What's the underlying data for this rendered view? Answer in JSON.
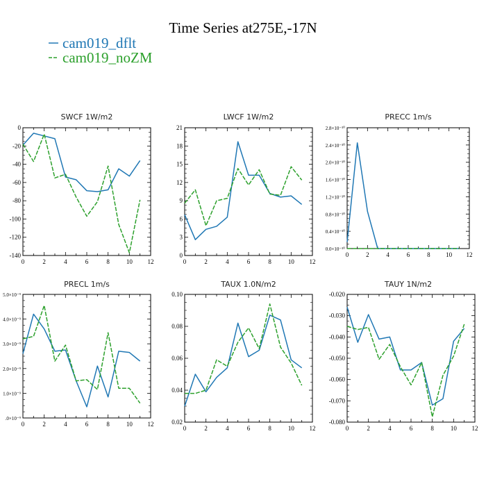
{
  "title": "Time Series at275E,-17N",
  "colors": {
    "dflt": "#1f77b4",
    "nozm": "#2ca02c",
    "axis": "#000000"
  },
  "legend": [
    {
      "label": "cam019_dflt",
      "color": "#1f77b4",
      "style": "solid"
    },
    {
      "label": "cam019_noZM",
      "color": "#2ca02c",
      "style": "dashed"
    }
  ],
  "chart_data": [
    {
      "type": "line",
      "title": "SWCF   1W/m2",
      "x": [
        0,
        1,
        2,
        3,
        4,
        5,
        6,
        7,
        8,
        9,
        10,
        11
      ],
      "xlim": [
        0,
        12
      ],
      "xticks": [
        0,
        2,
        4,
        6,
        8,
        10,
        12
      ],
      "xtick_labels": [
        "0",
        "2",
        "4",
        "6",
        "8",
        "10",
        "12"
      ],
      "ylim": [
        -140,
        0
      ],
      "yticks": [
        -140,
        -120,
        -100,
        -80,
        -60,
        -40,
        -20,
        0
      ],
      "ytick_labels": [
        "-140",
        "-120",
        "-100",
        "-80",
        "-60",
        "-40",
        "-20",
        "0"
      ],
      "series": [
        {
          "name": "cam019_dflt",
          "values": [
            -19,
            -6,
            -9,
            -12,
            -54,
            -57,
            -69,
            -70,
            -68,
            -45,
            -53,
            -36
          ]
        },
        {
          "name": "cam019_noZM",
          "values": [
            -18,
            -37,
            -7,
            -55,
            -51,
            -76,
            -97,
            -81,
            -42,
            -106,
            -137,
            -79
          ]
        }
      ]
    },
    {
      "type": "line",
      "title": "LWCF   1W/m2",
      "x": [
        0,
        1,
        2,
        3,
        4,
        5,
        6,
        7,
        8,
        9,
        10,
        11
      ],
      "xlim": [
        0,
        12
      ],
      "xticks": [
        0,
        2,
        4,
        6,
        8,
        10,
        12
      ],
      "xtick_labels": [
        "0",
        "2",
        "4",
        "6",
        "8",
        "10",
        "12"
      ],
      "ylim": [
        0,
        21
      ],
      "yticks": [
        0,
        3,
        6,
        9,
        12,
        15,
        18,
        21
      ],
      "ytick_labels": [
        "0",
        "3",
        "6",
        "9",
        "12",
        "15",
        "18",
        "21"
      ],
      "series": [
        {
          "name": "cam019_dflt",
          "values": [
            6.7,
            2.6,
            4.3,
            4.8,
            6.3,
            18.7,
            13.2,
            13.2,
            10.2,
            9.6,
            9.8,
            8.4
          ]
        },
        {
          "name": "cam019_noZM",
          "values": [
            8.6,
            10.8,
            4.9,
            9.0,
            9.4,
            14.3,
            11.6,
            14.1,
            10.1,
            9.9,
            14.6,
            12.4
          ]
        }
      ]
    },
    {
      "type": "line",
      "title": "PRECC   1m/s",
      "x": [
        0,
        1,
        2,
        3,
        4,
        5,
        6,
        7,
        8,
        9,
        10,
        11
      ],
      "xlim": [
        0,
        12
      ],
      "xticks": [
        0,
        2,
        4,
        6,
        8,
        10,
        12
      ],
      "xtick_labels": [
        "0",
        "2",
        "4",
        "6",
        "8",
        "10",
        "12"
      ],
      "ylim": [
        0,
        2.8e-10
      ],
      "yticks": [
        0,
        4e-11,
        8e-11,
        1.2e-10,
        1.6e-10,
        2e-10,
        2.4e-10,
        2.8e-10
      ],
      "ytick_labels": [
        "0.0×10⁻¹⁰",
        "0.4×10⁻¹⁰",
        "0.8×10⁻¹⁰",
        "1.2×10⁻¹⁰",
        "1.6×10⁻¹⁰",
        "2.0×10⁻¹⁰",
        "2.4×10⁻¹⁰",
        "2.8×10⁻¹⁰"
      ],
      "series": [
        {
          "name": "cam019_dflt",
          "values": [
            1.5e-11,
            2.45e-10,
            8.6e-11,
            0,
            0,
            0,
            0,
            0,
            0,
            0,
            0,
            0
          ]
        },
        {
          "name": "cam019_noZM",
          "values": [
            0,
            0,
            0,
            0,
            0,
            0,
            0,
            0,
            0,
            0,
            0,
            0
          ]
        }
      ]
    },
    {
      "type": "line",
      "title": "PRECL   1m/s",
      "x": [
        0,
        1,
        2,
        3,
        4,
        5,
        6,
        7,
        8,
        9,
        10,
        11
      ],
      "xlim": [
        0,
        12
      ],
      "xticks": [
        0,
        2,
        4,
        6,
        8,
        10,
        12
      ],
      "xtick_labels": [
        "0",
        "2",
        "4",
        "6",
        "8",
        "10",
        "12"
      ],
      "ylim": [
        0,
        5e-09
      ],
      "yticks": [
        0,
        1e-09,
        2e-09,
        3e-09,
        4e-09,
        5e-09
      ],
      "ytick_labels": [
        ".0×10⁻⁹",
        "1.0×10⁻⁹",
        "2.0×10⁻⁹",
        "3.0×10⁻⁹",
        "4.0×10⁻⁹",
        "5.0×10⁻⁹"
      ],
      "series": [
        {
          "name": "cam019_dflt",
          "values": [
            2.6e-09,
            4.2e-09,
            3.6e-09,
            2.7e-09,
            2.75e-09,
            1.5e-09,
            4.5e-10,
            2.1e-09,
            8.5e-10,
            2.7e-09,
            2.65e-09,
            2.3e-09
          ]
        },
        {
          "name": "cam019_noZM",
          "values": [
            3.2e-09,
            3.3e-09,
            4.55e-09,
            2.3e-09,
            2.95e-09,
            1.5e-09,
            1.55e-09,
            1.15e-09,
            3.45e-09,
            1.2e-09,
            1.2e-09,
            6e-10
          ]
        }
      ]
    },
    {
      "type": "line",
      "title": "TAUX   1.0N/m2",
      "x": [
        0,
        1,
        2,
        3,
        4,
        5,
        6,
        7,
        8,
        9,
        10,
        11
      ],
      "xlim": [
        0,
        12
      ],
      "xticks": [
        0,
        2,
        4,
        6,
        8,
        10,
        12
      ],
      "xtick_labels": [
        "0",
        "2",
        "4",
        "6",
        "8",
        "10",
        "12"
      ],
      "ylim": [
        0.02,
        0.1
      ],
      "yticks": [
        0.02,
        0.04,
        0.06,
        0.08,
        0.1
      ],
      "ytick_labels": [
        "0.02",
        "0.04",
        "0.06",
        "0.08",
        "0.10"
      ],
      "series": [
        {
          "name": "cam019_dflt",
          "values": [
            0.03,
            0.05,
            0.039,
            0.048,
            0.054,
            0.082,
            0.061,
            0.065,
            0.087,
            0.084,
            0.059,
            0.054
          ]
        },
        {
          "name": "cam019_noZM",
          "values": [
            0.038,
            0.038,
            0.04,
            0.059,
            0.055,
            0.07,
            0.079,
            0.066,
            0.094,
            0.067,
            0.057,
            0.043
          ]
        }
      ]
    },
    {
      "type": "line",
      "title": "TAUY   1N/m2",
      "x": [
        0,
        1,
        2,
        3,
        4,
        5,
        6,
        7,
        8,
        9,
        10,
        11
      ],
      "xlim": [
        0,
        12
      ],
      "xticks": [
        0,
        2,
        4,
        6,
        8,
        10,
        12
      ],
      "xtick_labels": [
        "0",
        "2",
        "4",
        "6",
        "8",
        "10",
        "12"
      ],
      "ylim": [
        -0.08,
        -0.02
      ],
      "yticks": [
        -0.08,
        -0.07,
        -0.06,
        -0.05,
        -0.04,
        -0.03,
        -0.02
      ],
      "ytick_labels": [
        "-0.080",
        "-0.070",
        "-0.060",
        "-0.050",
        "-0.040",
        "-0.030",
        "-0.020"
      ],
      "series": [
        {
          "name": "cam019_dflt",
          "values": [
            -0.026,
            -0.0425,
            -0.0295,
            -0.041,
            -0.04,
            -0.0555,
            -0.0555,
            -0.052,
            -0.072,
            -0.069,
            -0.042,
            -0.036
          ]
        },
        {
          "name": "cam019_noZM",
          "values": [
            -0.035,
            -0.0365,
            -0.0355,
            -0.0505,
            -0.0435,
            -0.054,
            -0.0625,
            -0.052,
            -0.0775,
            -0.058,
            -0.049,
            -0.034
          ]
        }
      ]
    }
  ]
}
